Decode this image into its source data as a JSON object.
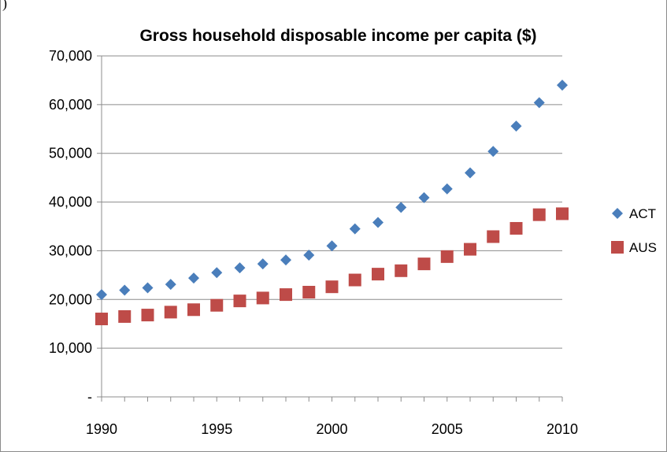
{
  "corner_mark": ")",
  "chart_data": {
    "type": "scatter",
    "title": "Gross household disposable income per capita ($)",
    "xlabel": "",
    "ylabel": "",
    "xlim": [
      1990,
      2010
    ],
    "ylim": [
      0,
      70000
    ],
    "x_ticks": [
      1990,
      1995,
      2000,
      2005,
      2010
    ],
    "y_ticks": [
      0,
      10000,
      20000,
      30000,
      40000,
      50000,
      60000,
      70000
    ],
    "y_tick_labels": [
      "-",
      "10,000",
      "20,000",
      "30,000",
      "40,000",
      "50,000",
      "60,000",
      "70,000"
    ],
    "x_tick_labels": [
      "1990",
      "1995",
      "2000",
      "2005",
      "2010"
    ],
    "grid": "horizontal",
    "legend_position": "right",
    "x": [
      1990,
      1991,
      1992,
      1993,
      1994,
      1995,
      1996,
      1997,
      1998,
      1999,
      2000,
      2001,
      2002,
      2003,
      2004,
      2005,
      2006,
      2007,
      2008,
      2009,
      2010
    ],
    "series": [
      {
        "name": "ACT",
        "marker": "diamond",
        "color": "#4a7ebb",
        "values": [
          21000,
          21900,
          22400,
          23100,
          24400,
          25500,
          26500,
          27300,
          28100,
          29100,
          31000,
          34500,
          35800,
          38900,
          40900,
          42700,
          46000,
          50400,
          55600,
          60400,
          64000
        ]
      },
      {
        "name": "AUS",
        "marker": "square",
        "color": "#be4b48",
        "values": [
          16000,
          16500,
          16800,
          17400,
          17900,
          18800,
          19700,
          20300,
          21000,
          21500,
          22600,
          24000,
          25200,
          25900,
          27300,
          28800,
          30300,
          32900,
          34600,
          37400,
          37600
        ]
      }
    ]
  }
}
